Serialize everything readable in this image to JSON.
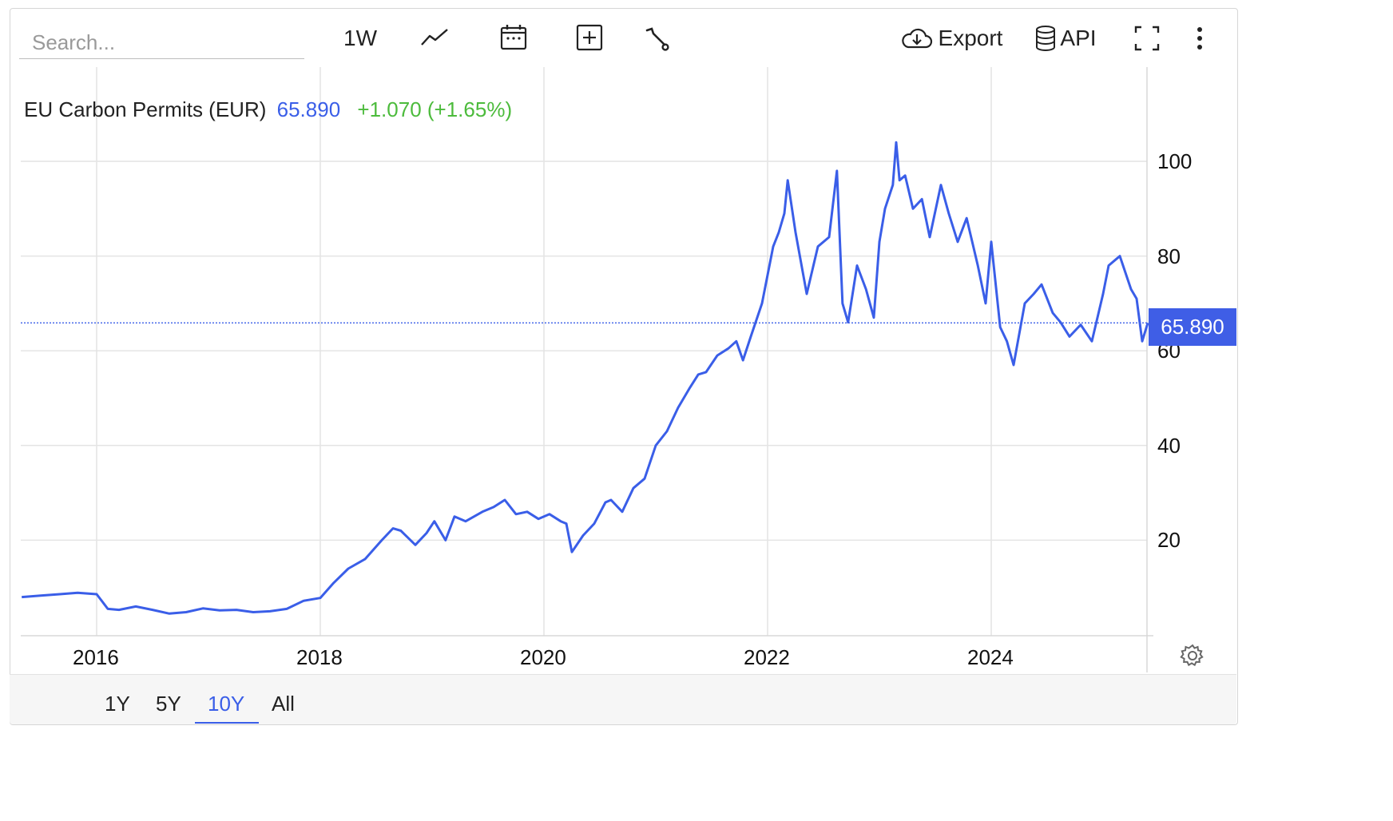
{
  "toolbar": {
    "search_placeholder": "Search...",
    "interval_label": "1W",
    "export_label": "Export",
    "api_label": "API",
    "icons": [
      "line-chart-icon",
      "calendar-icon",
      "add-box-icon",
      "wrench-icon",
      "cloud-download-icon",
      "database-icon",
      "fullscreen-icon",
      "more-vert-icon"
    ]
  },
  "legend": {
    "name": "EU Carbon Permits (EUR)",
    "last": "65.890",
    "change": "+1.070 (+1.65%)"
  },
  "price_tag": "65.890",
  "ranges": [
    {
      "label": "1Y",
      "active": false
    },
    {
      "label": "5Y",
      "active": false
    },
    {
      "label": "10Y",
      "active": true
    },
    {
      "label": "All",
      "active": false
    }
  ],
  "colors": {
    "line": "#3a5ee8",
    "tag": "#3f5ee6",
    "change_positive": "#4cbb3c"
  },
  "chart_data": {
    "type": "line",
    "title": "EU Carbon Permits (EUR)",
    "xlabel": "",
    "ylabel": "",
    "x_ticks": [
      "2016",
      "2018",
      "2020",
      "2022",
      "2024"
    ],
    "y_ticks": [
      20,
      40,
      60,
      80,
      100
    ],
    "ylim": [
      0,
      112
    ],
    "xlim": [
      2015.33,
      2025.52
    ],
    "grid": true,
    "last_value": 65.89,
    "series": [
      {
        "color": "#3a5ee8",
        "x": [
          2015.33,
          2015.5,
          2015.67,
          2015.83,
          2016.0,
          2016.1,
          2016.2,
          2016.35,
          2016.5,
          2016.65,
          2016.8,
          2016.95,
          2017.1,
          2017.25,
          2017.4,
          2017.55,
          2017.7,
          2017.85,
          2018.0,
          2018.12,
          2018.25,
          2018.4,
          2018.55,
          2018.65,
          2018.72,
          2018.85,
          2018.95,
          2019.02,
          2019.12,
          2019.2,
          2019.3,
          2019.45,
          2019.55,
          2019.65,
          2019.75,
          2019.85,
          2019.95,
          2020.05,
          2020.15,
          2020.2,
          2020.25,
          2020.35,
          2020.45,
          2020.55,
          2020.6,
          2020.7,
          2020.8,
          2020.9,
          2021.0,
          2021.1,
          2021.2,
          2021.3,
          2021.38,
          2021.45,
          2021.55,
          2021.65,
          2021.72,
          2021.78,
          2021.85,
          2021.95,
          2022.05,
          2022.1,
          2022.15,
          2022.18,
          2022.25,
          2022.35,
          2022.45,
          2022.55,
          2022.62,
          2022.67,
          2022.72,
          2022.8,
          2022.88,
          2022.95,
          2023.0,
          2023.05,
          2023.12,
          2023.15,
          2023.18,
          2023.23,
          2023.3,
          2023.38,
          2023.45,
          2023.55,
          2023.62,
          2023.7,
          2023.78,
          2023.88,
          2023.95,
          2024.0,
          2024.08,
          2024.14,
          2024.2,
          2024.3,
          2024.38,
          2024.45,
          2024.55,
          2024.62,
          2024.7,
          2024.8,
          2024.9,
          2025.0,
          2025.05,
          2025.15,
          2025.25,
          2025.3,
          2025.35,
          2025.4
        ],
        "values": [
          8.0,
          8.3,
          8.6,
          8.9,
          8.6,
          5.5,
          5.3,
          6.0,
          5.3,
          4.5,
          4.8,
          5.6,
          5.2,
          5.3,
          4.8,
          5.0,
          5.5,
          7.2,
          7.8,
          11.0,
          14.0,
          16.0,
          20.0,
          22.5,
          22.0,
          19.0,
          21.5,
          24.0,
          20.0,
          25.0,
          24.0,
          26.0,
          27.0,
          28.5,
          25.5,
          26.0,
          24.5,
          25.5,
          24.0,
          23.5,
          17.5,
          21.0,
          23.5,
          28.0,
          28.5,
          26.0,
          31.0,
          33.0,
          40.0,
          43.0,
          48.0,
          52.0,
          55.0,
          55.5,
          59.0,
          60.5,
          62.0,
          58.0,
          63.0,
          70.0,
          82.0,
          85.0,
          89.0,
          96.0,
          85.0,
          72.0,
          82.0,
          84.0,
          98.0,
          70.0,
          66.0,
          78.0,
          73.0,
          67.0,
          83.0,
          90.0,
          95.0,
          104.0,
          96.0,
          97.0,
          90.0,
          92.0,
          84.0,
          95.0,
          89.0,
          83.0,
          88.0,
          78.0,
          70.0,
          83.0,
          65.0,
          62.0,
          57.0,
          70.0,
          72.0,
          74.0,
          68.0,
          66.0,
          63.0,
          65.5,
          62.0,
          72.0,
          78.0,
          80.0,
          73.0,
          71.0,
          62.0,
          65.89
        ]
      }
    ]
  }
}
